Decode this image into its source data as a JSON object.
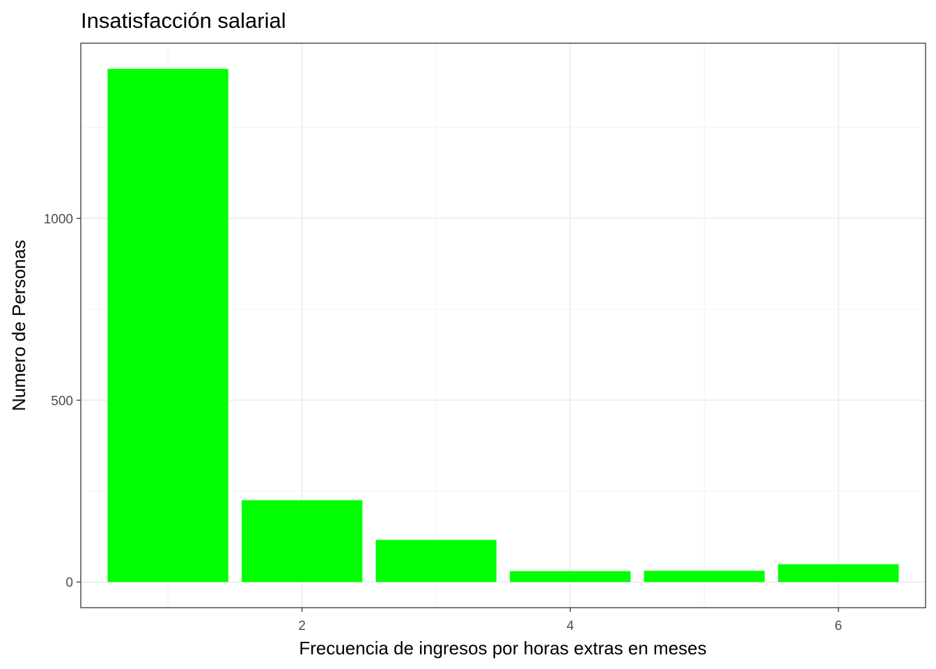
{
  "chart_data": {
    "type": "bar",
    "title": "Insatisfacción salarial",
    "xlabel": "Frecuencia de ingresos por horas extras en meses",
    "ylabel": "Numero de Personas",
    "x": [
      1,
      2,
      3,
      4,
      5,
      6
    ],
    "values": [
      1411,
      225,
      116,
      30,
      31,
      49
    ],
    "bar_color": "#00FF00",
    "xlim": [
      0.35,
      6.65
    ],
    "ylim": [
      -70.5,
      1481.5
    ],
    "x_ticks": [
      2,
      4,
      6
    ],
    "x_tick_labels": [
      "2",
      "4",
      "6"
    ],
    "y_ticks": [
      0,
      500,
      1000
    ],
    "y_tick_labels": [
      "0",
      "500",
      "1000"
    ],
    "grid": true,
    "legend": "none"
  }
}
